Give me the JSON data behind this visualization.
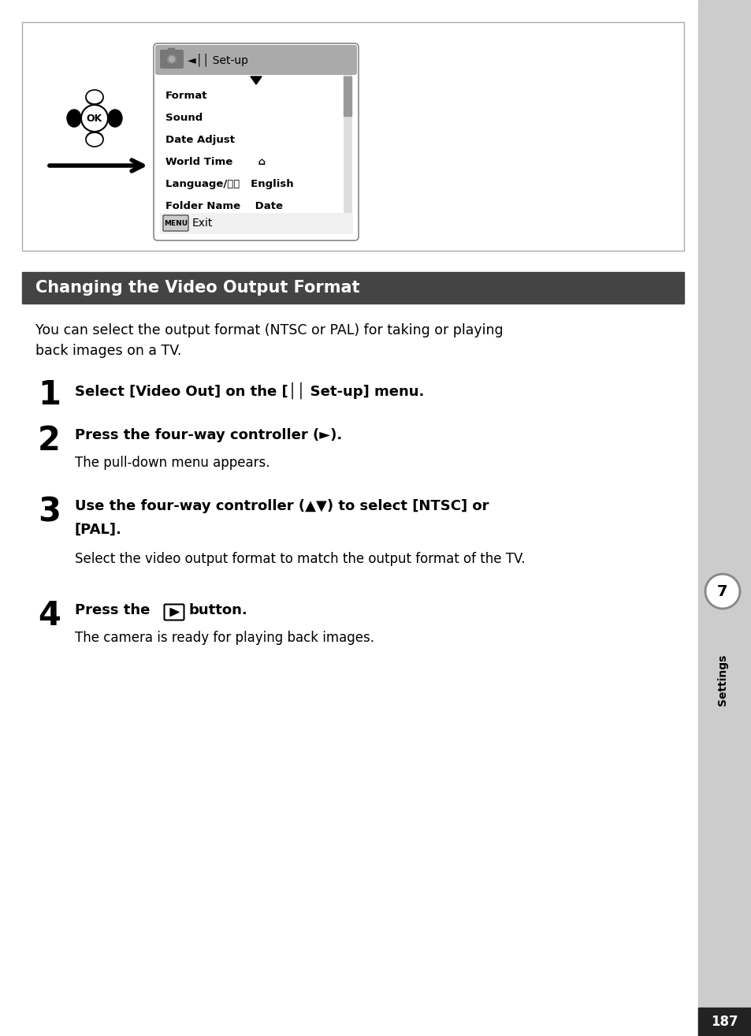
{
  "page_bg": "#ffffff",
  "sidebar_bg": "#cccccc",
  "section_header_bg": "#444444",
  "section_header_text": "Changing the Video Output Format",
  "section_header_color": "#ffffff",
  "intro_text": "You can select the output format (NTSC or PAL) for taking or playing\nback images on a TV.",
  "page_number": "187",
  "page_number_bg": "#222222",
  "page_number_color": "#ffffff",
  "tab_color": "#888888",
  "tab_text_color": "#000000",
  "sidebar_label": "Settings"
}
